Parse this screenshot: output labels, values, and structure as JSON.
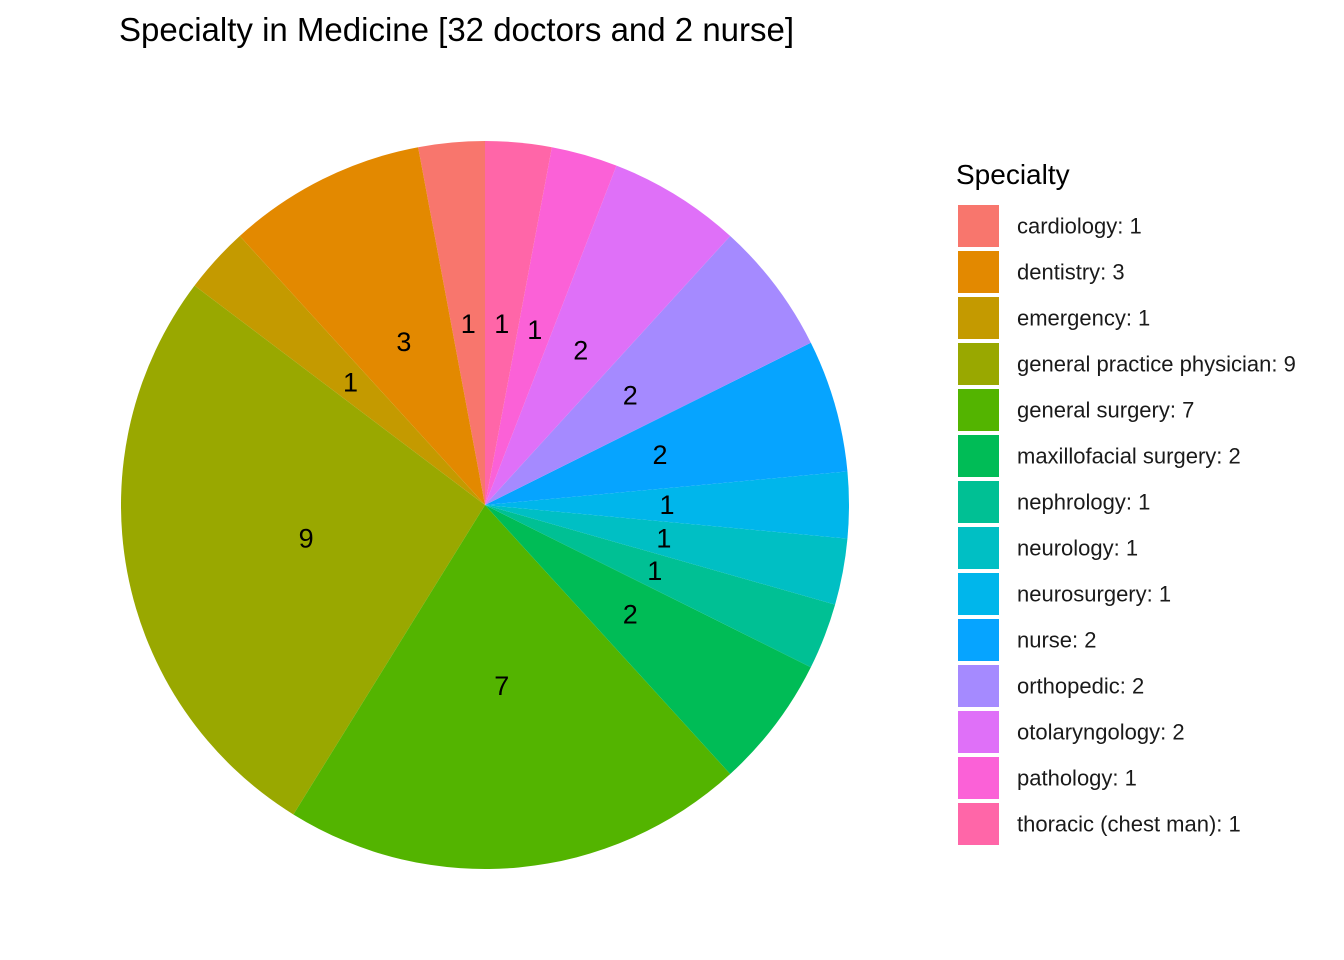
{
  "chart_data": {
    "type": "pie",
    "title": "Specialty in Medicine [32 doctors and 2 nurse]",
    "legend_title": "Specialty",
    "legend_position": "right",
    "direction": "counterclockwise",
    "start": "top",
    "slices": [
      {
        "name": "cardiology",
        "value": 1,
        "legend": "cardiology: 1",
        "color": "#F8766D"
      },
      {
        "name": "dentistry",
        "value": 3,
        "legend": "dentistry: 3",
        "color": "#E38900"
      },
      {
        "name": "emergency",
        "value": 1,
        "legend": "emergency: 1",
        "color": "#C49A00"
      },
      {
        "name": "general practice physician",
        "value": 9,
        "legend": "general practice physician: 9",
        "color": "#99A800"
      },
      {
        "name": "general surgery",
        "value": 7,
        "legend": "general surgery: 7",
        "color": "#53B400"
      },
      {
        "name": "maxillofacial surgery",
        "value": 2,
        "legend": "maxillofacial surgery: 2",
        "color": "#00BC56"
      },
      {
        "name": "nephrology",
        "value": 1,
        "legend": "nephrology: 1",
        "color": "#00C094"
      },
      {
        "name": "neurology",
        "value": 1,
        "legend": "neurology: 1",
        "color": "#00BFC4"
      },
      {
        "name": "neurosurgery",
        "value": 1,
        "legend": "neurosurgery: 1",
        "color": "#00B6EB"
      },
      {
        "name": "nurse",
        "value": 2,
        "legend": "nurse: 2",
        "color": "#06A4FF"
      },
      {
        "name": "orthopedic",
        "value": 2,
        "legend": "orthopedic: 2",
        "color": "#A58AFF"
      },
      {
        "name": "otolaryngology",
        "value": 2,
        "legend": "otolaryngology: 2",
        "color": "#DF70F8"
      },
      {
        "name": "pathology",
        "value": 1,
        "legend": "pathology: 1",
        "color": "#FB61D7"
      },
      {
        "name": "thoracic (chest man)",
        "value": 1,
        "legend": "thoracic (chest man): 1",
        "color": "#FF66A8"
      }
    ]
  }
}
